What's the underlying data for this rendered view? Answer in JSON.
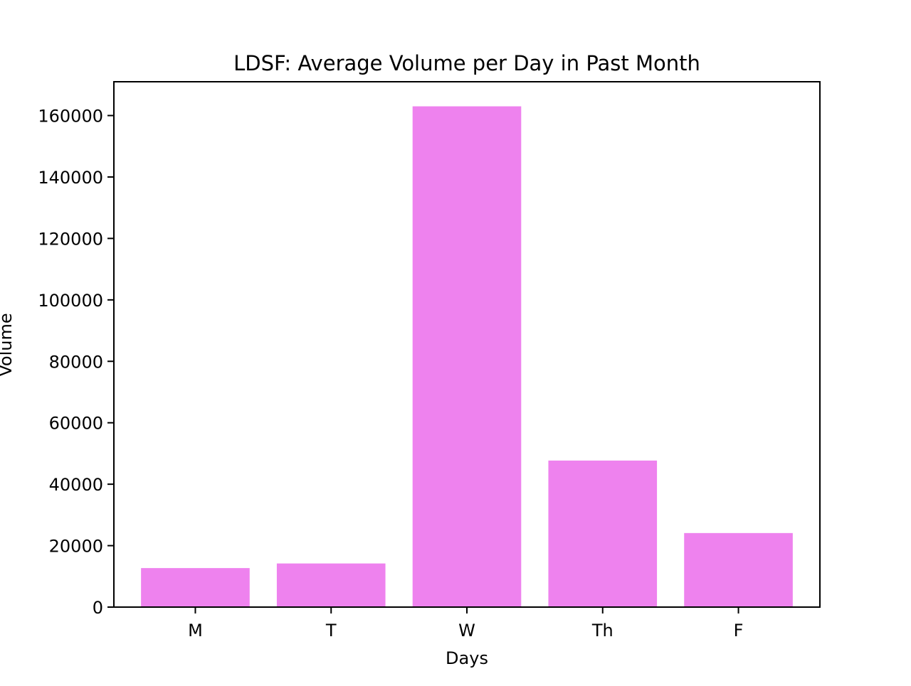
{
  "chart_data": {
    "type": "bar",
    "title": "LDSF: Average Volume per Day in Past Month",
    "xlabel": "Days",
    "ylabel": "Volume",
    "categories": [
      "M",
      "T",
      "W",
      "Th",
      "F"
    ],
    "values": [
      12700,
      14200,
      163000,
      47700,
      24100
    ],
    "ylim": [
      0,
      171000
    ],
    "yticks": [
      0,
      20000,
      40000,
      60000,
      80000,
      100000,
      120000,
      140000,
      160000
    ],
    "ytick_labels": [
      "0",
      "20000",
      "40000",
      "60000",
      "80000",
      "100000",
      "120000",
      "140000",
      "160000"
    ],
    "grid": false,
    "legend": "none",
    "bar_color": "#ee82ee"
  }
}
